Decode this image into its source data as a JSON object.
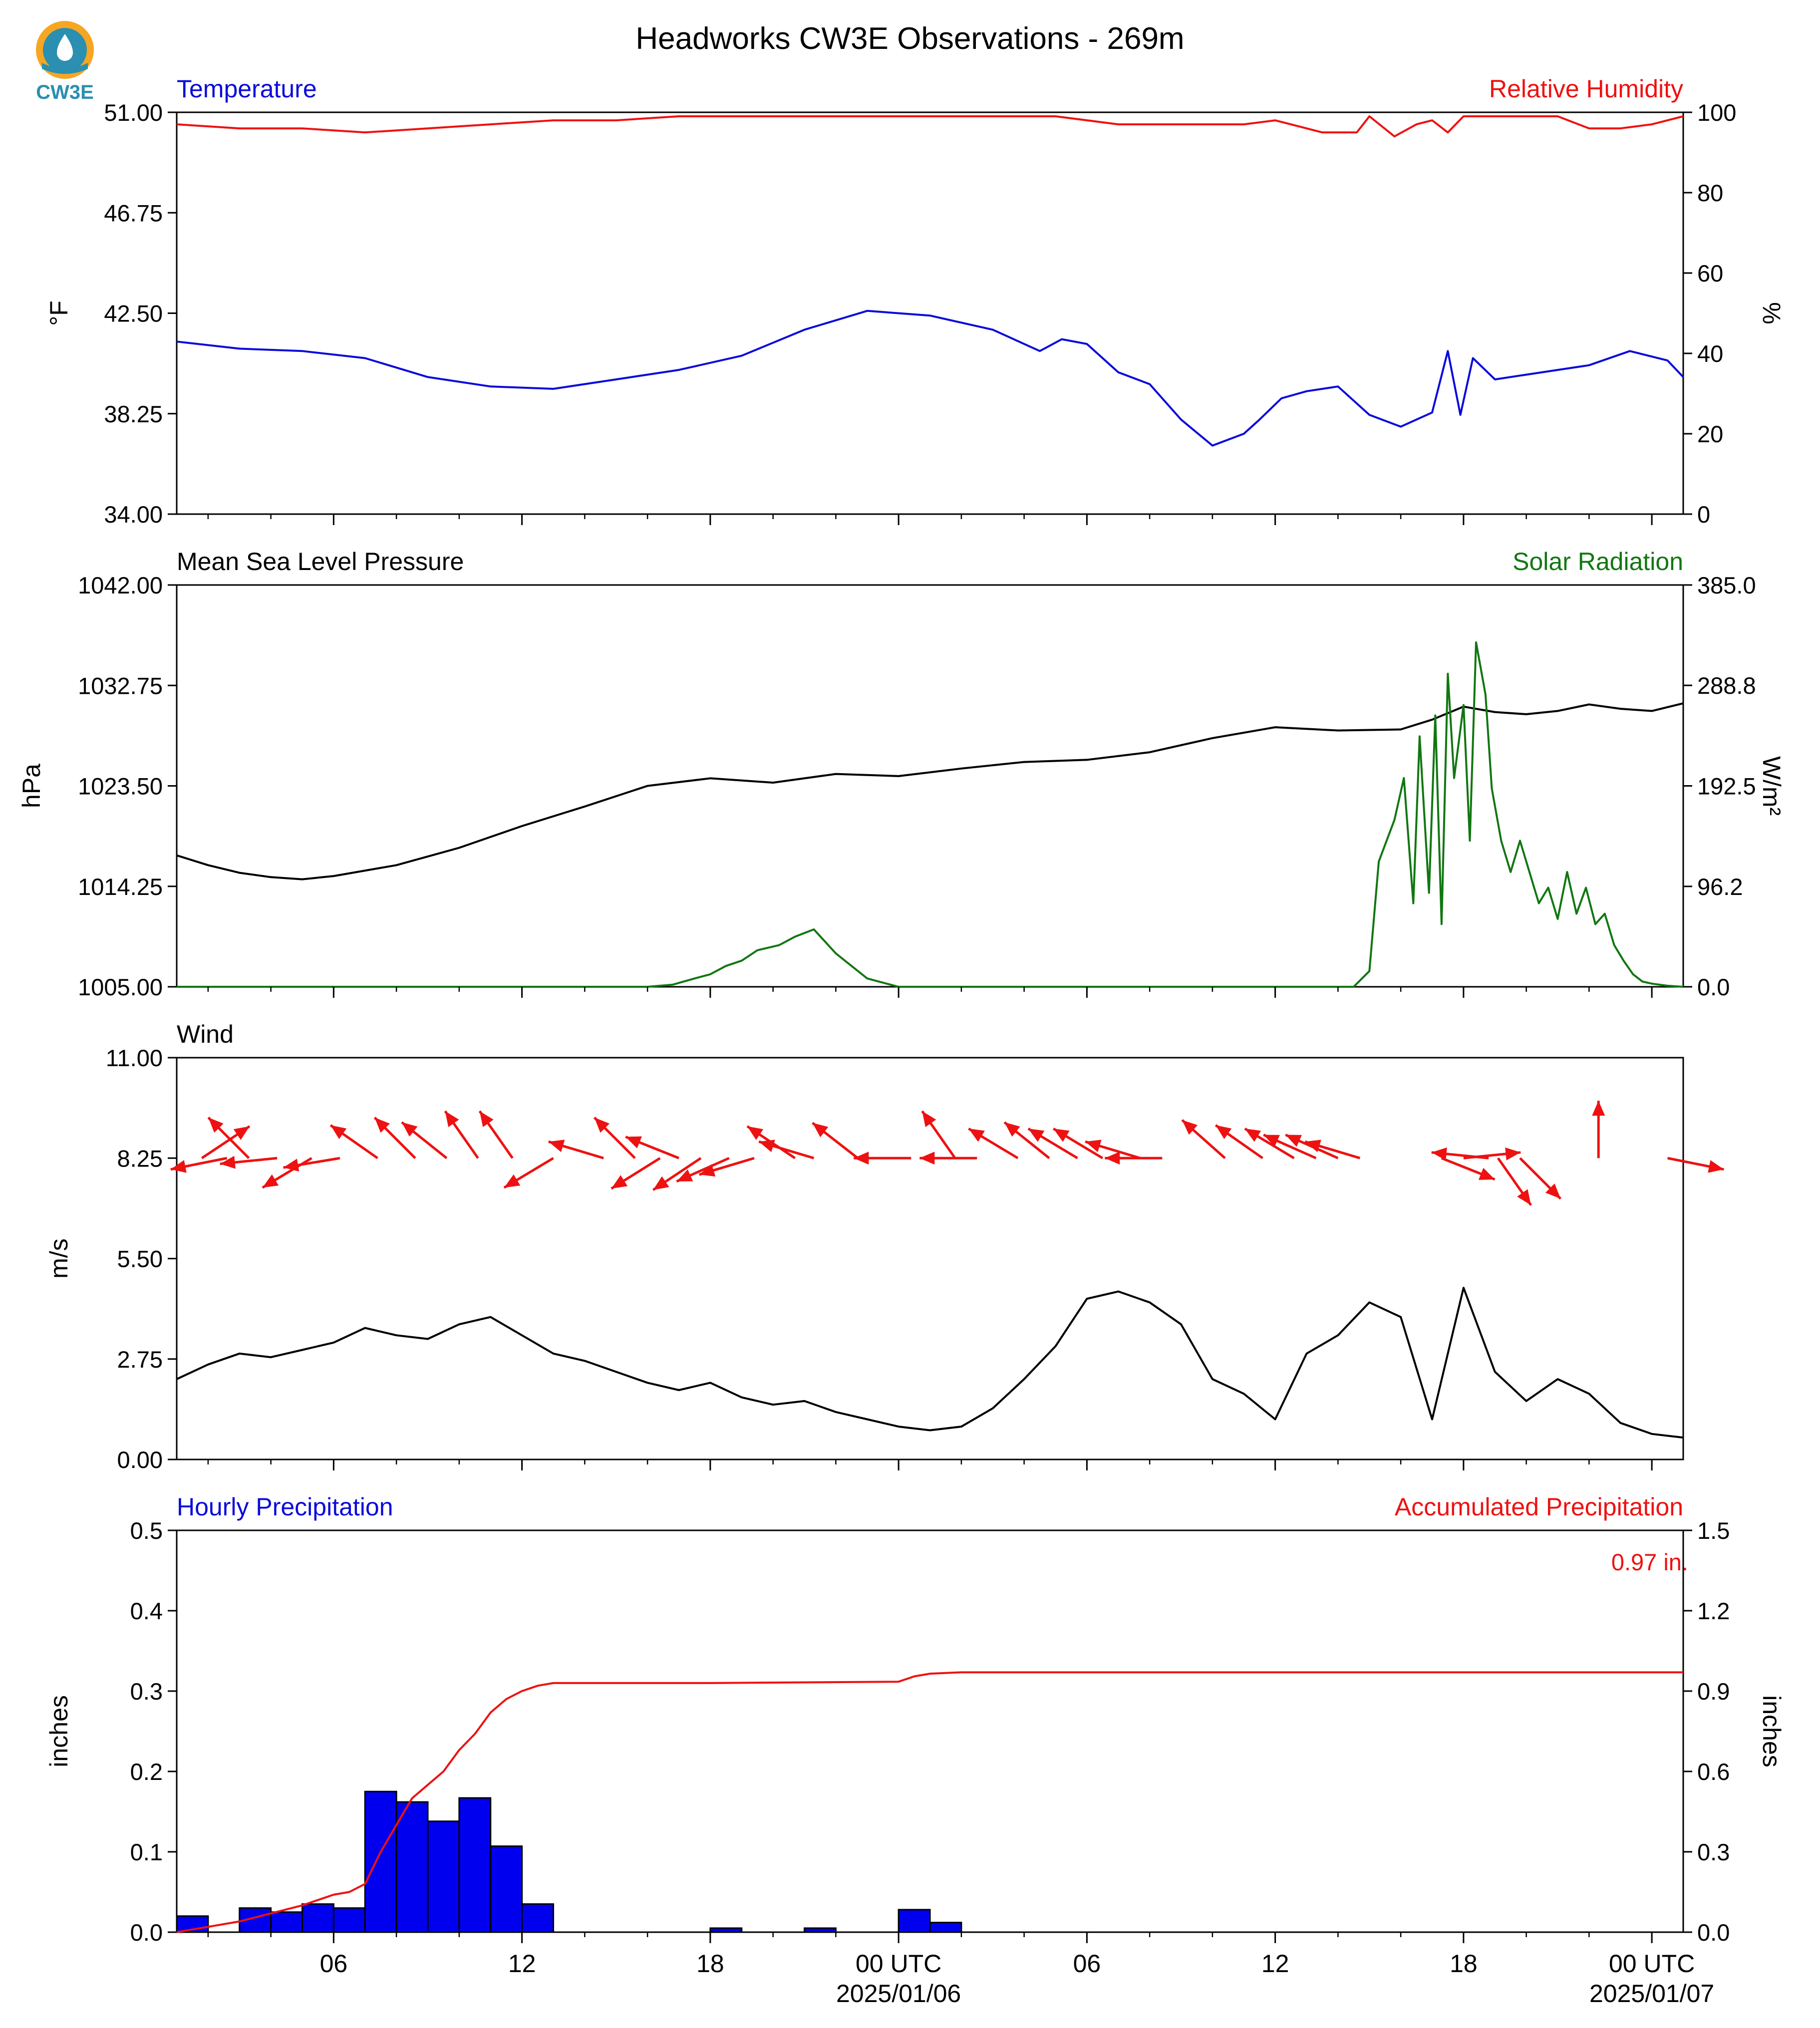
{
  "title": "Headworks CW3E Observations - 269m",
  "logo_text": "CW3E",
  "colors": {
    "blue": "#0a0adb",
    "red": "#ee1111",
    "green": "#117711",
    "black": "#000000",
    "bar": "#0000ee",
    "logo_orange": "#f5a623",
    "logo_teal": "#2a8fb0"
  },
  "x_axis": {
    "ticks": [
      {
        "hour": 6,
        "label": "06",
        "sublabel": ""
      },
      {
        "hour": 12,
        "label": "12",
        "sublabel": ""
      },
      {
        "hour": 18,
        "label": "18",
        "sublabel": ""
      },
      {
        "hour": 24,
        "label": "00 UTC",
        "sublabel": "2025/01/06"
      },
      {
        "hour": 30,
        "label": "06",
        "sublabel": ""
      },
      {
        "hour": 36,
        "label": "12",
        "sublabel": ""
      },
      {
        "hour": 42,
        "label": "18",
        "sublabel": ""
      },
      {
        "hour": 48,
        "label": "00 UTC",
        "sublabel": "2025/01/07"
      }
    ],
    "range_hours": [
      1,
      49
    ]
  },
  "chart_data": [
    {
      "type": "line",
      "panel": "temperature-humidity",
      "left_title": "Temperature",
      "right_title": "Relative Humidity",
      "ylabel": "°F",
      "ylabel_right": "%",
      "ylim": [
        34.0,
        51.0
      ],
      "ylim_right": [
        0,
        100
      ],
      "yticks": [
        "34.00",
        "38.25",
        "42.50",
        "46.75",
        "51.00"
      ],
      "yticks_right": [
        "0",
        "20",
        "40",
        "60",
        "80",
        "100"
      ],
      "series": [
        {
          "name": "Temperature",
          "axis": "left",
          "color": "blue",
          "x": [
            1,
            3,
            5,
            7,
            9,
            11,
            13,
            15,
            17,
            19,
            21,
            23,
            25,
            27,
            28.5,
            29.2,
            30,
            31,
            32,
            33,
            34,
            35,
            35.5,
            36.2,
            37,
            38,
            39,
            40,
            41,
            41.5,
            41.9,
            42.3,
            43,
            44,
            46,
            47.3,
            48.5,
            49
          ],
          "y": [
            41.3,
            41.0,
            40.9,
            40.6,
            39.8,
            39.4,
            39.3,
            39.7,
            40.1,
            40.7,
            41.8,
            42.6,
            42.4,
            41.8,
            40.9,
            41.4,
            41.2,
            40.0,
            39.5,
            38.0,
            36.9,
            37.4,
            38.0,
            38.9,
            39.2,
            39.4,
            38.2,
            37.7,
            38.3,
            40.9,
            38.2,
            40.6,
            39.7,
            39.9,
            40.3,
            40.9,
            40.5,
            39.8
          ]
        },
        {
          "name": "Relative Humidity",
          "axis": "right",
          "color": "red",
          "x": [
            1,
            3,
            5,
            7,
            9,
            11,
            13,
            15,
            17,
            19,
            21,
            23,
            25,
            27,
            29,
            31,
            33,
            35,
            36,
            37,
            37.5,
            38.6,
            39,
            39.8,
            40.5,
            41,
            41.5,
            42,
            43,
            44,
            45,
            46,
            47,
            48,
            49
          ],
          "y": [
            97,
            96,
            96,
            95,
            96,
            97,
            98,
            98,
            99,
            99,
            99,
            99,
            99,
            99,
            99,
            97,
            97,
            97,
            98,
            96,
            95,
            95,
            99,
            94,
            97,
            98,
            95,
            99,
            99,
            99,
            99,
            96,
            96,
            97,
            99
          ]
        }
      ]
    },
    {
      "type": "line",
      "panel": "pressure-solar",
      "left_title": "Mean Sea Level Pressure",
      "right_title": "Solar Radiation",
      "ylabel": "hPa",
      "ylabel_right": "W/m²",
      "ylim": [
        1005.0,
        1042.0
      ],
      "ylim_right": [
        0.0,
        385.0
      ],
      "yticks": [
        "1005.00",
        "1014.25",
        "1023.50",
        "1032.75",
        "1042.00"
      ],
      "yticks_right": [
        "0.0",
        "96.2",
        "192.5",
        "288.8",
        "385.0"
      ],
      "series": [
        {
          "name": "Mean Sea Level Pressure",
          "axis": "left",
          "color": "black",
          "x": [
            1,
            2,
            3,
            4,
            5,
            6,
            8,
            10,
            12,
            14,
            16,
            18,
            20,
            22,
            24,
            26,
            28,
            30,
            32,
            34,
            36,
            38,
            40,
            41,
            42,
            43,
            44,
            45,
            46,
            47,
            48,
            49
          ],
          "y": [
            1017.1,
            1016.2,
            1015.5,
            1015.1,
            1014.9,
            1015.2,
            1016.2,
            1017.8,
            1019.8,
            1021.6,
            1023.5,
            1024.2,
            1023.8,
            1024.6,
            1024.4,
            1025.1,
            1025.7,
            1025.9,
            1026.6,
            1027.9,
            1028.9,
            1028.6,
            1028.7,
            1029.6,
            1030.8,
            1030.3,
            1030.1,
            1030.4,
            1031.0,
            1030.6,
            1030.4,
            1031.1
          ]
        },
        {
          "name": "Solar Radiation",
          "axis": "right",
          "color": "green",
          "x": [
            1,
            16,
            16.8,
            17.5,
            18,
            18.5,
            19,
            19.5,
            20.2,
            20.7,
            21.3,
            22,
            22.5,
            23,
            24,
            30,
            35,
            38.5,
            39,
            39.3,
            39.8,
            40.1,
            40.4,
            40.6,
            40.9,
            41.1,
            41.3,
            41.5,
            41.7,
            42,
            42.2,
            42.4,
            42.7,
            42.9,
            43.2,
            43.5,
            43.8,
            44.1,
            44.4,
            44.7,
            45,
            45.3,
            45.6,
            45.9,
            46.2,
            46.5,
            46.8,
            47.1,
            47.4,
            47.7,
            48,
            48.5,
            49
          ],
          "y": [
            0,
            0,
            2,
            8,
            12,
            20,
            25,
            35,
            40,
            48,
            55,
            32,
            20,
            8,
            0,
            0,
            0,
            0,
            15,
            120,
            160,
            200,
            80,
            240,
            90,
            260,
            60,
            300,
            200,
            270,
            140,
            330,
            280,
            190,
            140,
            110,
            140,
            110,
            80,
            95,
            65,
            110,
            70,
            95,
            60,
            70,
            40,
            25,
            12,
            5,
            3,
            1,
            0
          ]
        }
      ]
    },
    {
      "type": "line",
      "panel": "wind",
      "left_title": "Wind",
      "ylabel": "m/s",
      "ylim": [
        0.0,
        11.0
      ],
      "yticks": [
        "0.00",
        "2.75",
        "5.50",
        "8.25",
        "11.00"
      ],
      "series": [
        {
          "name": "Wind Speed",
          "axis": "left",
          "color": "black",
          "x": [
            1,
            2,
            3,
            4,
            5,
            6,
            7,
            8,
            9,
            10,
            11,
            12,
            13,
            14,
            15,
            16,
            17,
            18,
            19,
            20,
            21,
            22,
            23,
            24,
            25,
            26,
            27,
            28,
            29,
            30,
            31,
            32,
            33,
            34,
            35,
            36,
            37,
            38,
            39,
            40,
            41,
            42,
            43,
            44,
            45,
            46,
            47,
            48,
            49
          ],
          "y": [
            2.2,
            2.6,
            2.9,
            2.8,
            3.0,
            3.2,
            3.6,
            3.4,
            3.3,
            3.7,
            3.9,
            3.4,
            2.9,
            2.7,
            2.4,
            2.1,
            1.9,
            2.1,
            1.7,
            1.5,
            1.6,
            1.3,
            1.1,
            0.9,
            0.8,
            0.9,
            1.4,
            2.2,
            3.1,
            4.4,
            4.6,
            4.3,
            3.7,
            2.2,
            1.8,
            1.1,
            2.9,
            3.4,
            4.3,
            3.9,
            1.1,
            4.7,
            2.4,
            1.6,
            2.2,
            1.8,
            1.0,
            0.7,
            0.6
          ]
        }
      ],
      "arrows": [
        {
          "x": 1.8,
          "u": 0.9,
          "v": 0.6
        },
        {
          "x": 2.6,
          "u": -1.0,
          "v": -0.2
        },
        {
          "x": 3.3,
          "u": -0.9,
          "v": 0.9
        },
        {
          "x": 4.2,
          "u": -1.0,
          "v": -0.1
        },
        {
          "x": 5.3,
          "u": -1.0,
          "v": -0.6
        },
        {
          "x": 6.2,
          "u": -1.2,
          "v": -0.2
        },
        {
          "x": 7.4,
          "u": -1.0,
          "v": 0.7
        },
        {
          "x": 8.6,
          "u": -0.9,
          "v": 0.9
        },
        {
          "x": 9.6,
          "u": -1.0,
          "v": 0.8
        },
        {
          "x": 10.6,
          "u": -0.7,
          "v": 1.0
        },
        {
          "x": 11.7,
          "u": -0.7,
          "v": 1.0
        },
        {
          "x": 13.0,
          "u": -1.0,
          "v": -0.6
        },
        {
          "x": 14.6,
          "u": -1.0,
          "v": 0.3
        },
        {
          "x": 15.6,
          "u": -0.9,
          "v": 0.9
        },
        {
          "x": 16.4,
          "u": -0.8,
          "v": -0.5
        },
        {
          "x": 17.0,
          "u": -1.0,
          "v": 0.4
        },
        {
          "x": 17.7,
          "u": -0.9,
          "v": -0.6
        },
        {
          "x": 18.6,
          "u": -0.9,
          "v": -0.4
        },
        {
          "x": 19.4,
          "u": -1.0,
          "v": -0.3
        },
        {
          "x": 20.7,
          "u": -0.9,
          "v": 0.6
        },
        {
          "x": 21.3,
          "u": -1.0,
          "v": 0.3
        },
        {
          "x": 22.7,
          "u": -0.9,
          "v": 0.7
        },
        {
          "x": 24.4,
          "u": -1.0,
          "v": -0.0
        },
        {
          "x": 25.8,
          "u": -0.7,
          "v": 1.0
        },
        {
          "x": 26.5,
          "u": -1.0,
          "v": -0.0
        },
        {
          "x": 27.8,
          "u": -1.0,
          "v": 0.6
        },
        {
          "x": 28.8,
          "u": -1.0,
          "v": 0.8
        },
        {
          "x": 29.7,
          "u": -1.0,
          "v": 0.6
        },
        {
          "x": 30.5,
          "u": -1.0,
          "v": 0.6
        },
        {
          "x": 31.7,
          "u": -1.0,
          "v": 0.3
        },
        {
          "x": 32.4,
          "u": -1.0,
          "v": -0.0
        },
        {
          "x": 34.4,
          "u": -0.9,
          "v": 0.8
        },
        {
          "x": 35.6,
          "u": -1.0,
          "v": 0.7
        },
        {
          "x": 36.6,
          "u": -1.0,
          "v": 0.6
        },
        {
          "x": 37.3,
          "u": -0.9,
          "v": 0.4
        },
        {
          "x": 38.0,
          "u": -0.9,
          "v": 0.4
        },
        {
          "x": 38.7,
          "u": -1.0,
          "v": 0.3
        },
        {
          "x": 41.3,
          "u": 1.0,
          "v": -0.4
        },
        {
          "x": 42.0,
          "u": 1.0,
          "v": 0.1
        },
        {
          "x": 42.8,
          "u": -1.0,
          "v": 0.1
        },
        {
          "x": 43.1,
          "u": 0.7,
          "v": -1.0
        },
        {
          "x": 43.8,
          "u": 0.8,
          "v": -0.8
        },
        {
          "x": 46.3,
          "u": 0.0,
          "v": 1.0
        },
        {
          "x": 48.5,
          "u": 1.0,
          "v": -0.2
        }
      ]
    },
    {
      "type": "bar",
      "panel": "precipitation",
      "left_title": "Hourly Precipitation",
      "right_title": "Accumulated Precipitation",
      "annotation": "0.97 in.",
      "ylabel": "inches",
      "ylabel_right": "inches",
      "ylim": [
        0.0,
        0.5
      ],
      "ylim_right": [
        0.0,
        1.5
      ],
      "yticks": [
        "0.0",
        "0.1",
        "0.2",
        "0.3",
        "0.4",
        "0.5"
      ],
      "yticks_right": [
        "0.0",
        "0.3",
        "0.6",
        "0.9",
        "1.2",
        "1.5"
      ],
      "bars": {
        "name": "Hourly Precipitation",
        "color": "bar",
        "start_hours": [
          1,
          3,
          4,
          5,
          6,
          7,
          8,
          9,
          10,
          11,
          12,
          18,
          21,
          24,
          25
        ],
        "values": [
          0.02,
          0.03,
          0.025,
          0.035,
          0.03,
          0.175,
          0.162,
          0.138,
          0.167,
          0.107,
          0.035,
          0.005,
          0.005,
          0.028,
          0.012
        ]
      },
      "series": [
        {
          "name": "Accumulated Precipitation",
          "axis": "right",
          "color": "red",
          "x": [
            1,
            2,
            3,
            4,
            5,
            6,
            6.5,
            7,
            7.5,
            8,
            8.5,
            9,
            9.5,
            10,
            10.5,
            11,
            11.5,
            12,
            12.5,
            13,
            18,
            24,
            24.5,
            25,
            26,
            49
          ],
          "y": [
            0.0,
            0.02,
            0.04,
            0.07,
            0.1,
            0.14,
            0.15,
            0.18,
            0.3,
            0.4,
            0.5,
            0.55,
            0.6,
            0.68,
            0.74,
            0.82,
            0.87,
            0.9,
            0.92,
            0.93,
            0.93,
            0.935,
            0.955,
            0.965,
            0.97,
            0.97
          ]
        }
      ]
    }
  ]
}
